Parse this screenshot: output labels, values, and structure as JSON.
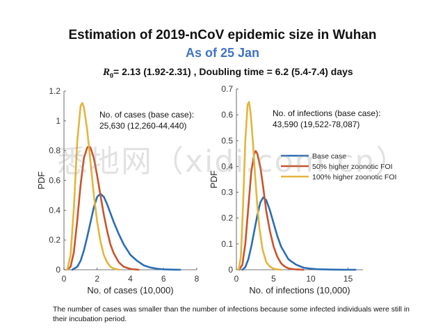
{
  "header": {
    "title": "Estimation of 2019-nCoV epidemic size in Wuhan",
    "subtitle": "As of 25 Jan",
    "formula_symbol": "R",
    "formula_sub": "0",
    "formula_text": "= 2.13 (1.92-2.31) , Doubling time  = 6.2 (5.4-7.4) days"
  },
  "footnote": "The number of cases was smaller than the number of infections because some infected individuals were still in their incubation period.",
  "watermark": "悉地网（xidi.com.cn）",
  "colors": {
    "base": "#2a6db5",
    "fifty": "#c9532b",
    "hundred": "#e3b53d"
  },
  "chart_data": [
    {
      "type": "line",
      "xlabel": "No. of cases (10,000)",
      "ylabel": "PDF",
      "xlim": [
        0,
        8
      ],
      "ylim": [
        0,
        1.2
      ],
      "xticks": [
        0,
        2,
        4,
        6,
        8
      ],
      "yticks": [
        0,
        0.2,
        0.4,
        0.6,
        0.8,
        1,
        1.2
      ],
      "annotation": [
        "No. of cases (base case):",
        "25,630 (12,260-44,440)"
      ],
      "series": [
        {
          "name": "Base case",
          "color": "#2a6db5",
          "x": [
            0.5,
            0.8,
            1.0,
            1.2,
            1.4,
            1.6,
            1.8,
            2.0,
            2.2,
            2.4,
            2.6,
            2.8,
            3.0,
            3.3,
            3.6,
            4.0,
            4.4,
            4.8,
            5.2,
            5.6,
            6.0,
            6.5,
            7.0
          ],
          "y": [
            0.0,
            0.02,
            0.06,
            0.13,
            0.22,
            0.32,
            0.42,
            0.49,
            0.51,
            0.49,
            0.44,
            0.38,
            0.32,
            0.24,
            0.17,
            0.1,
            0.06,
            0.03,
            0.015,
            0.007,
            0.003,
            0.001,
            0.0
          ]
        },
        {
          "name": "50% higher zoonotic FOI",
          "color": "#c9532b",
          "x": [
            0.2,
            0.4,
            0.6,
            0.8,
            1.0,
            1.2,
            1.4,
            1.5,
            1.6,
            1.8,
            2.0,
            2.2,
            2.4,
            2.6,
            2.8,
            3.0,
            3.3,
            3.6,
            4.0,
            4.5
          ],
          "y": [
            0.0,
            0.02,
            0.12,
            0.33,
            0.57,
            0.75,
            0.82,
            0.83,
            0.82,
            0.75,
            0.63,
            0.5,
            0.37,
            0.26,
            0.17,
            0.11,
            0.05,
            0.02,
            0.005,
            0.0
          ]
        },
        {
          "name": "100% higher zoonotic FOI",
          "color": "#e3b53d",
          "x": [
            0.2,
            0.4,
            0.6,
            0.8,
            1.0,
            1.1,
            1.2,
            1.4,
            1.6,
            1.8,
            2.0,
            2.2,
            2.4,
            2.6,
            2.8,
            3.0,
            3.3
          ],
          "y": [
            0.0,
            0.1,
            0.42,
            0.86,
            1.1,
            1.12,
            1.09,
            0.94,
            0.72,
            0.5,
            0.32,
            0.19,
            0.1,
            0.05,
            0.02,
            0.008,
            0.0
          ]
        }
      ]
    },
    {
      "type": "line",
      "xlabel": "No. of infections (10,000)",
      "ylabel": "PDF",
      "xlim": [
        0,
        17
      ],
      "ylim": [
        0,
        0.7
      ],
      "xticks": [
        0,
        5,
        10,
        15
      ],
      "yticks": [
        0,
        0.1,
        0.2,
        0.3,
        0.4,
        0.5,
        0.6,
        0.7
      ],
      "legend": "right",
      "annotation": [
        "No. of infections (base case):",
        "43,590 (19,522-78,087)"
      ],
      "series": [
        {
          "name": "Base case",
          "color": "#2a6db5",
          "x": [
            0.8,
            1.2,
            1.6,
            2.0,
            2.4,
            2.8,
            3.2,
            3.6,
            4.0,
            4.5,
            5.0,
            5.5,
            6.0,
            7.0,
            8.0,
            9.0,
            10.0,
            11.0,
            12.0,
            13.0,
            14.0,
            15.0,
            16.0
          ],
          "y": [
            0.0,
            0.01,
            0.04,
            0.09,
            0.15,
            0.21,
            0.26,
            0.28,
            0.27,
            0.23,
            0.18,
            0.13,
            0.09,
            0.04,
            0.02,
            0.008,
            0.004,
            0.002,
            0.001,
            0.0005,
            0.0002,
            0.0001,
            0.0
          ]
        },
        {
          "name": "50% higher zoonotic FOI",
          "color": "#c9532b",
          "x": [
            0.4,
            0.8,
            1.2,
            1.6,
            2.0,
            2.4,
            2.6,
            2.8,
            3.2,
            3.6,
            4.0,
            4.5,
            5.0,
            5.5,
            6.0,
            6.5,
            7.0,
            8.0,
            9.0
          ],
          "y": [
            0.0,
            0.02,
            0.1,
            0.24,
            0.38,
            0.45,
            0.46,
            0.45,
            0.4,
            0.32,
            0.23,
            0.15,
            0.09,
            0.05,
            0.025,
            0.012,
            0.005,
            0.001,
            0.0
          ]
        },
        {
          "name": "100% higher zoonotic FOI",
          "color": "#e3b53d",
          "x": [
            0.3,
            0.6,
            0.9,
            1.2,
            1.5,
            1.7,
            1.9,
            2.2,
            2.5,
            2.8,
            3.1,
            3.5,
            4.0,
            4.5,
            5.0,
            5.5,
            6.0
          ],
          "y": [
            0.0,
            0.05,
            0.25,
            0.5,
            0.64,
            0.65,
            0.61,
            0.5,
            0.37,
            0.25,
            0.16,
            0.08,
            0.03,
            0.012,
            0.004,
            0.001,
            0.0
          ]
        }
      ]
    }
  ]
}
